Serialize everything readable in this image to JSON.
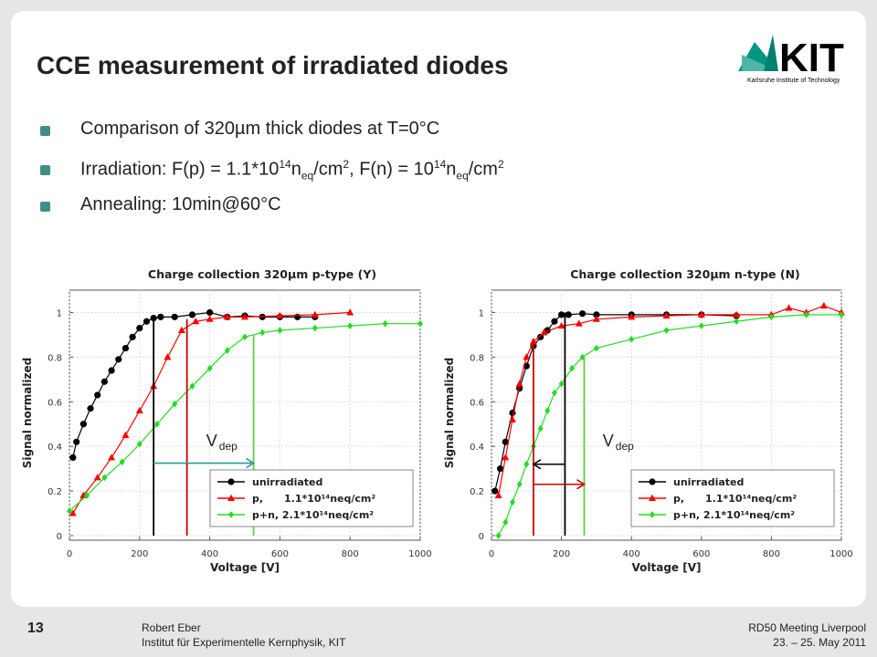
{
  "slide": {
    "title": "CCE measurement of irradiated diodes",
    "bullets": [
      [
        {
          "text": "Comparison of 320µm thick diodes at T=0°C"
        }
      ],
      [
        {
          "text": "Irradiation: F(p) = 1.1*10"
        },
        {
          "sup": "14"
        },
        {
          "text": "n"
        },
        {
          "sub": "eq"
        },
        {
          "text": "/cm"
        },
        {
          "sup": "2"
        },
        {
          "text": ", F(n) = 10"
        },
        {
          "sup": "14"
        },
        {
          "text": "n"
        },
        {
          "sub": "eq"
        },
        {
          "text": "/cm"
        },
        {
          "sup": "2"
        }
      ],
      [
        {
          "text": "Annealing: 10min@60°C"
        }
      ]
    ],
    "logo": {
      "name": "KIT",
      "tagline": "Karlsruhe Institute of Technology"
    },
    "footer": {
      "page": "13",
      "author": [
        "Robert Eber",
        "Institut für Experimentelle Kernphysik, KIT"
      ],
      "event": [
        "RD50 Meeting Liverpool",
        "23. – 25. May 2011"
      ]
    }
  },
  "chart_data": [
    {
      "type": "line",
      "title": "Charge collection 320µm p-type (Y)",
      "xlabel": "Voltage [V]",
      "ylabel": "Signal normalized",
      "xlim": [
        0,
        1000
      ],
      "ylim": [
        0,
        1.1
      ],
      "xticks": [
        0,
        200,
        400,
        600,
        800,
        1000
      ],
      "yticks": [
        0,
        0.2,
        0.4,
        0.6,
        0.8,
        1
      ],
      "grid": true,
      "legend": "lower right",
      "series": [
        {
          "name": "unirradiated",
          "color": "#000000",
          "marker": "circle",
          "x": [
            10,
            20,
            40,
            60,
            80,
            100,
            120,
            140,
            160,
            180,
            200,
            220,
            240,
            260,
            300,
            350,
            400,
            450,
            500,
            550,
            600,
            650,
            700
          ],
          "values": [
            0.35,
            0.42,
            0.5,
            0.57,
            0.63,
            0.69,
            0.74,
            0.79,
            0.84,
            0.89,
            0.93,
            0.96,
            0.975,
            0.98,
            0.98,
            0.99,
            1.0,
            0.98,
            0.985,
            0.98,
            0.98,
            0.98,
            0.98
          ]
        },
        {
          "name": "p,      1.1*10¹⁴neq/cm²",
          "color": "#ff0000",
          "marker": "triangle",
          "x": [
            10,
            40,
            80,
            120,
            160,
            200,
            240,
            280,
            320,
            360,
            400,
            450,
            500,
            600,
            700,
            800
          ],
          "values": [
            0.1,
            0.18,
            0.26,
            0.35,
            0.45,
            0.56,
            0.67,
            0.8,
            0.92,
            0.96,
            0.97,
            0.98,
            0.98,
            0.985,
            0.99,
            1.0
          ]
        },
        {
          "name": "p+n, 2.1*10¹⁴neq/cm²",
          "color": "#22dd22",
          "marker": "diamond",
          "x": [
            0,
            50,
            100,
            150,
            200,
            250,
            300,
            350,
            400,
            450,
            500,
            550,
            600,
            700,
            800,
            900,
            1000
          ],
          "values": [
            0.11,
            0.18,
            0.26,
            0.33,
            0.41,
            0.5,
            0.59,
            0.67,
            0.75,
            0.83,
            0.89,
            0.91,
            0.92,
            0.93,
            0.94,
            0.95,
            0.95
          ]
        }
      ],
      "vlines": [
        {
          "x": 240,
          "top": 0.98,
          "color": "#000000"
        },
        {
          "x": 335,
          "top": 0.97,
          "color": "#cc0000"
        },
        {
          "x": 525,
          "top": 0.9,
          "color": "#66cc44"
        }
      ],
      "arrows": [
        {
          "from": 240,
          "to": 525,
          "y": 0.325,
          "color": "#2a9d8f"
        }
      ],
      "annotation": {
        "text": "V",
        "sub": "dep",
        "x": 390,
        "y": 0.4
      }
    },
    {
      "type": "line",
      "title": "Charge collection 320µm n-type (N)",
      "xlabel": "Voltage [V]",
      "ylabel": "Signal normalized",
      "xlim": [
        0,
        1000
      ],
      "ylim": [
        0,
        1.1
      ],
      "xticks": [
        0,
        200,
        400,
        600,
        800,
        1000
      ],
      "yticks": [
        0,
        0.2,
        0.4,
        0.6,
        0.8,
        1
      ],
      "grid": true,
      "legend": "lower right",
      "series": [
        {
          "name": "unirradiated",
          "color": "#000000",
          "marker": "circle",
          "x": [
            10,
            25,
            40,
            60,
            80,
            100,
            120,
            140,
            160,
            180,
            200,
            220,
            260,
            300,
            400,
            500,
            600,
            700
          ],
          "values": [
            0.2,
            0.3,
            0.42,
            0.55,
            0.66,
            0.76,
            0.85,
            0.89,
            0.92,
            0.96,
            0.99,
            0.99,
            0.995,
            0.99,
            0.99,
            0.99,
            0.99,
            0.985
          ]
        },
        {
          "name": "p,      1.1*10¹⁴neq/cm²",
          "color": "#ff0000",
          "marker": "triangle",
          "x": [
            20,
            40,
            60,
            80,
            100,
            120,
            150,
            200,
            250,
            300,
            400,
            500,
            600,
            700,
            800,
            850,
            900,
            950,
            1000
          ],
          "values": [
            0.18,
            0.35,
            0.52,
            0.68,
            0.8,
            0.87,
            0.91,
            0.94,
            0.95,
            0.97,
            0.98,
            0.985,
            0.99,
            0.99,
            0.99,
            1.02,
            1.0,
            1.03,
            1.0
          ]
        },
        {
          "name": "p+n, 2.1*10¹⁴neq/cm²",
          "color": "#22dd22",
          "marker": "diamond",
          "x": [
            20,
            40,
            60,
            80,
            100,
            120,
            140,
            160,
            180,
            200,
            230,
            260,
            300,
            400,
            500,
            600,
            700,
            800,
            900,
            1000
          ],
          "values": [
            0.0,
            0.06,
            0.15,
            0.23,
            0.32,
            0.4,
            0.48,
            0.56,
            0.64,
            0.68,
            0.75,
            0.8,
            0.84,
            0.88,
            0.92,
            0.94,
            0.96,
            0.98,
            0.99,
            0.99
          ]
        }
      ],
      "vlines": [
        {
          "x": 210,
          "top": 1.0,
          "color": "#000000"
        },
        {
          "x": 120,
          "top": 0.87,
          "color": "#cc0000"
        },
        {
          "x": 265,
          "top": 0.8,
          "color": "#66cc44"
        }
      ],
      "arrows": [
        {
          "from": 210,
          "to": 120,
          "y": 0.32,
          "color": "#000000"
        },
        {
          "from": 120,
          "to": 265,
          "y": 0.23,
          "color": "#cc0000"
        }
      ],
      "annotation": {
        "text": "V",
        "sub": "dep",
        "x": 318,
        "y": 0.4
      }
    }
  ]
}
